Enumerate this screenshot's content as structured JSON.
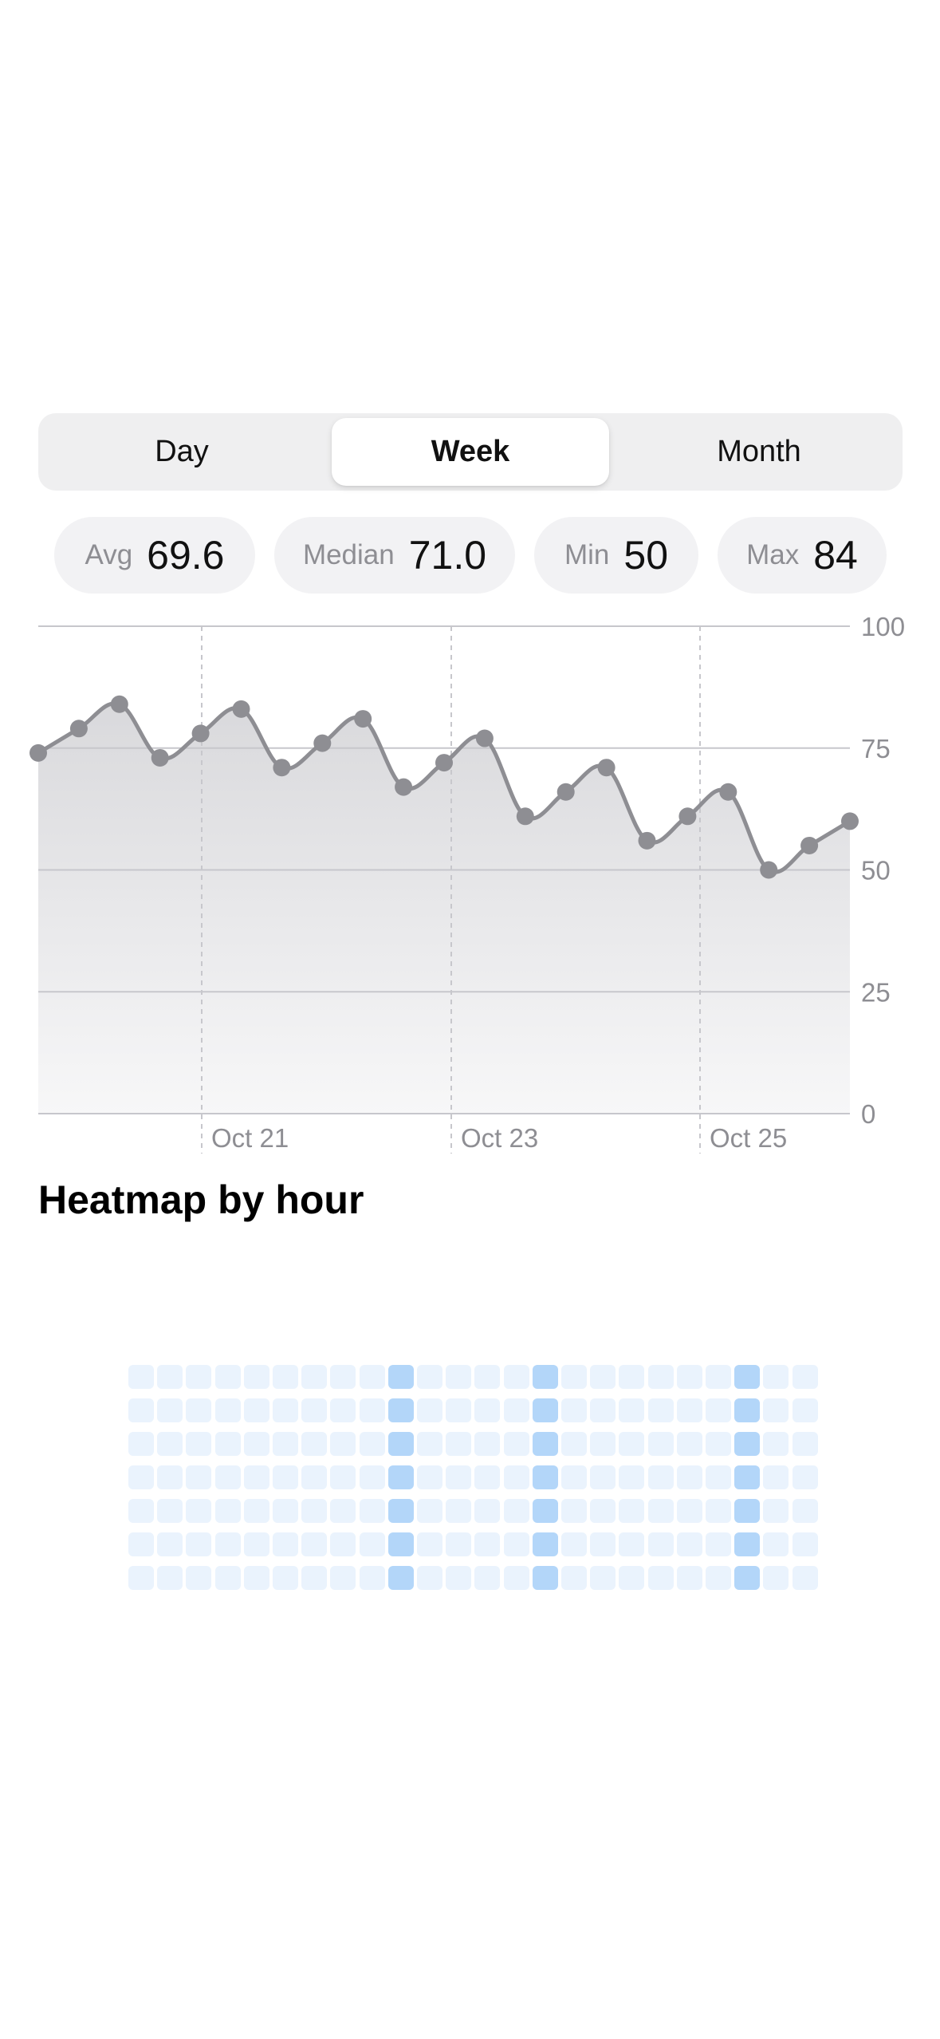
{
  "segmented": {
    "options": [
      "Day",
      "Week",
      "Month"
    ],
    "selected": "Week"
  },
  "stats": [
    {
      "label": "Avg",
      "value": "69.6"
    },
    {
      "label": "Median",
      "value": "71.0"
    },
    {
      "label": "Min",
      "value": "50"
    },
    {
      "label": "Max",
      "value": "84"
    }
  ],
  "chart_data": {
    "type": "area",
    "x_labels": [
      "Oct 21",
      "Oct 23",
      "Oct 25"
    ],
    "y_ticks": [
      100,
      75,
      50,
      25,
      0
    ],
    "ylim": [
      0,
      100
    ],
    "values": [
      74,
      79,
      84,
      73,
      78,
      83,
      71,
      76,
      81,
      67,
      72,
      77,
      61,
      66,
      71,
      56,
      61,
      66,
      50,
      55,
      60
    ],
    "grid": "horizontal gridlines at each y tick; dashed vertical lines at each date label",
    "y_axis_side": "right",
    "colors": {
      "line": "#8e8e93",
      "fill_top": "#d9d9dc",
      "fill_bottom": "#f7f7f8",
      "grid": "#c7c7cc",
      "tick_text": "#8e8e93"
    }
  },
  "heatmap_section": {
    "title": "Heatmap by hour",
    "rows": 7,
    "columns": 24,
    "highlight_columns": [
      9,
      14,
      21
    ],
    "colors": {
      "base": "#eaf3fd",
      "highlight": "#b3d6f9"
    }
  }
}
